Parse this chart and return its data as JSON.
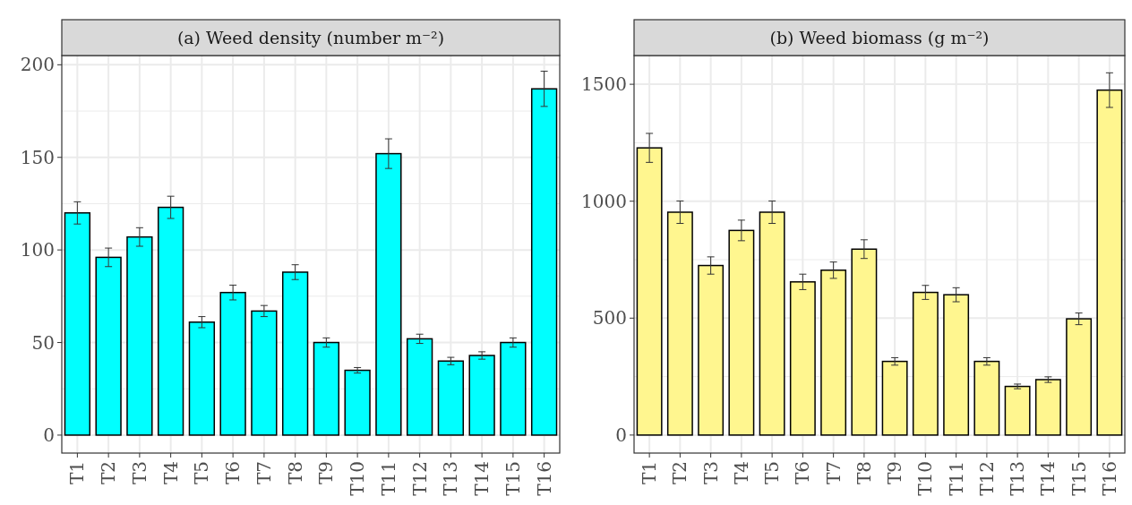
{
  "chart_data": [
    {
      "type": "bar",
      "title": "(a) Weed density (number m⁻²)",
      "categories": [
        "T1",
        "T2",
        "T3",
        "T4",
        "T5",
        "T6",
        "T7",
        "T8",
        "T9",
        "T10",
        "T11",
        "T12",
        "T13",
        "T14",
        "T15",
        "T16"
      ],
      "values": [
        120,
        96,
        107,
        123,
        61,
        77,
        67,
        88,
        50,
        35,
        152,
        52,
        40,
        43,
        50,
        187
      ],
      "errors": [
        6,
        5,
        5,
        6,
        3,
        4,
        3,
        4,
        2.5,
        1.5,
        8,
        2.5,
        2,
        2,
        2.5,
        9.5
      ],
      "color": "#00ffff",
      "ylim": [
        -9.7,
        205
      ],
      "yticks": [
        0,
        50,
        100,
        150,
        200
      ],
      "grid": true
    },
    {
      "type": "bar",
      "title": "(b) Weed biomass (g m⁻²)",
      "categories": [
        "T1",
        "T2",
        "T3",
        "T4",
        "T5",
        "T6",
        "T7",
        "T8",
        "T9",
        "T10",
        "T11",
        "T12",
        "T13",
        "T14",
        "T15",
        "T16"
      ],
      "values": [
        1228,
        953,
        725,
        875,
        953,
        655,
        705,
        795,
        315,
        610,
        600,
        315,
        208,
        237,
        497,
        1475
      ],
      "errors": [
        62,
        48,
        37,
        44,
        48,
        33,
        35,
        40,
        16,
        30,
        30,
        16,
        10,
        12,
        25,
        74
      ],
      "color": "#fff68f",
      "ylim": [
        -77,
        1623
      ],
      "yticks": [
        0,
        500,
        1000,
        1500
      ],
      "grid": true
    }
  ]
}
